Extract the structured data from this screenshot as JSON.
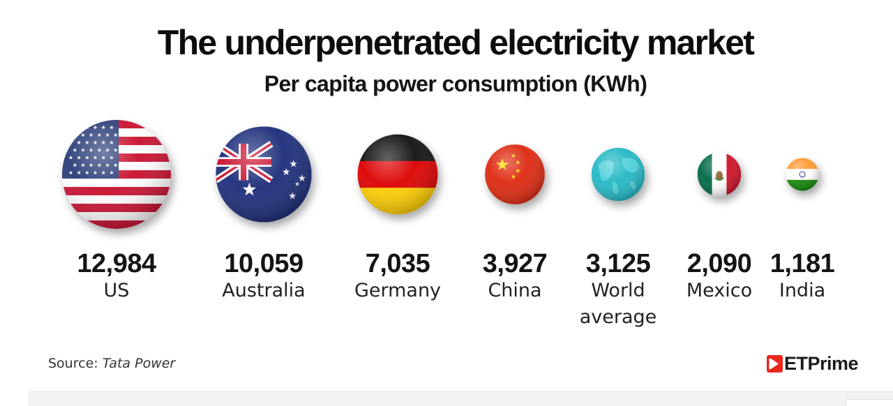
{
  "chart_data": {
    "type": "bubble",
    "title": "The underpenetrated electricity market",
    "subtitle": "Per capita power consumption (KWh)",
    "categories": [
      "US",
      "Australia",
      "Germany",
      "China",
      "World average",
      "Mexico",
      "India"
    ],
    "values": [
      12984,
      10059,
      7035,
      3927,
      3125,
      2090,
      1181
    ],
    "value_labels": [
      "12,984",
      "10,059",
      "7,035",
      "3,927",
      "3,125",
      "2,090",
      "1,181"
    ],
    "icons": [
      "us-flag-icon",
      "australia-flag-icon",
      "germany-flag-icon",
      "china-flag-icon",
      "globe-icon",
      "mexico-flag-icon",
      "india-flag-icon"
    ],
    "legend": "none",
    "grid": false
  },
  "source": {
    "label": "Source:",
    "name": "Tata Power"
  },
  "logo": {
    "text": "ETPrime",
    "color": "#e8291c"
  },
  "colors": {
    "us_red": "#c8102e",
    "us_blue": "#2a3c78",
    "australia_blue": "#1c2d7a",
    "germany_red": "#dd0000",
    "germany_gold": "#ffce00",
    "china_red": "#de2910",
    "china_star": "#ffde00",
    "globe_teal": "#22b8c5",
    "mexico_green": "#006847",
    "mexico_red": "#ce1126",
    "india_saffron": "#ff9933",
    "india_green": "#138808",
    "india_chakra": "#000080"
  }
}
